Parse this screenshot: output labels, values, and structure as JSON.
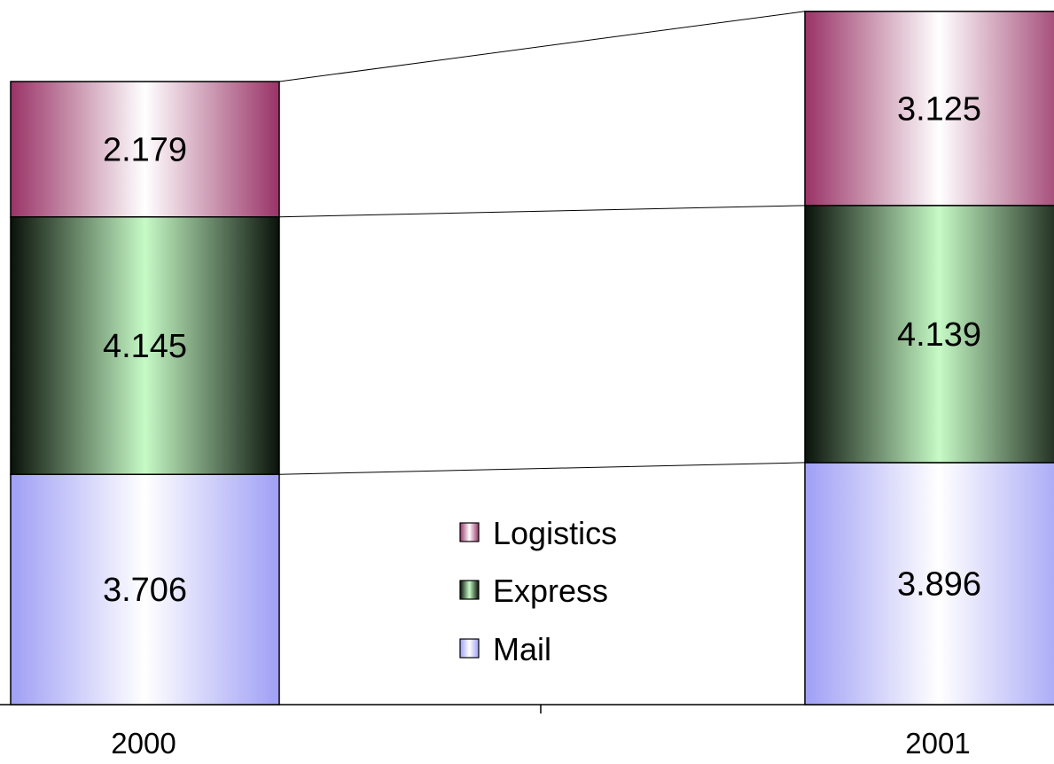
{
  "chart_data": {
    "type": "bar",
    "stacked": true,
    "categories": [
      "2000",
      "2001"
    ],
    "series": [
      {
        "name": "Mail",
        "values": [
          3.706,
          3.896
        ],
        "color": "#a0a0ff"
      },
      {
        "name": "Express",
        "values": [
          4.145,
          4.139
        ],
        "color": "#ccffcc"
      },
      {
        "name": "Logistics",
        "values": [
          2.179,
          3.125
        ],
        "color": "#993366"
      }
    ],
    "data_labels": [
      [
        "3.706",
        "3.896"
      ],
      [
        "4.145",
        "4.139"
      ],
      [
        "2.179",
        "3.125"
      ]
    ],
    "legend": {
      "placement": "center",
      "order": [
        "Logistics",
        "Express",
        "Mail"
      ]
    },
    "series_connector_lines": true,
    "grid": false,
    "ylim": [
      0,
      11.2
    ]
  }
}
